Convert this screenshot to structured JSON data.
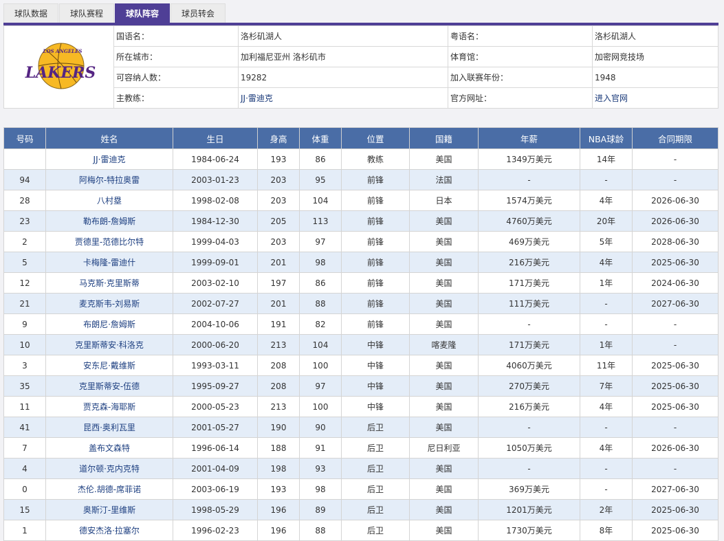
{
  "tabs": [
    "球队数据",
    "球队赛程",
    "球队阵容",
    "球员转会"
  ],
  "active_tab": 2,
  "colors": {
    "accent": "#4f3f96",
    "header": "#4a6da6",
    "alt_row": "#e4edf8"
  },
  "team": {
    "logo_text": "LOS ANGELES LAKERS",
    "rows": [
      [
        "国语名：",
        "洛杉矶湖人",
        "粤语名：",
        "洛杉矶湖人"
      ],
      [
        "所在城市：",
        "加利福尼亚州 洛杉矶市",
        "体育馆：",
        "加密网竞技场"
      ],
      [
        "可容纳人数：",
        "19282",
        "加入联赛年份：",
        "1948"
      ],
      [
        "主教练：",
        "JJ·雷迪克",
        "官方网址：",
        "进入官网"
      ]
    ]
  },
  "roster": {
    "headers": [
      "号码",
      "姓名",
      "生日",
      "身高",
      "体重",
      "位置",
      "国籍",
      "年薪",
      "NBA球龄",
      "合同期限"
    ],
    "rows": [
      [
        "",
        "JJ·雷迪克",
        "1984-06-24",
        "193",
        "86",
        "教练",
        "美国",
        "1349万美元",
        "14年",
        "-"
      ],
      [
        "94",
        "阿梅尔-特拉奥雷",
        "2003-01-23",
        "203",
        "95",
        "前锋",
        "法国",
        "-",
        "-",
        "-"
      ],
      [
        "28",
        "八村塁",
        "1998-02-08",
        "203",
        "104",
        "前锋",
        "日本",
        "1574万美元",
        "4年",
        "2026-06-30"
      ],
      [
        "23",
        "勒布朗-詹姆斯",
        "1984-12-30",
        "205",
        "113",
        "前锋",
        "美国",
        "4760万美元",
        "20年",
        "2026-06-30"
      ],
      [
        "2",
        "贾德里-范德比尔特",
        "1999-04-03",
        "203",
        "97",
        "前锋",
        "美国",
        "469万美元",
        "5年",
        "2028-06-30"
      ],
      [
        "5",
        "卡梅隆-雷迪什",
        "1999-09-01",
        "201",
        "98",
        "前锋",
        "美国",
        "216万美元",
        "4年",
        "2025-06-30"
      ],
      [
        "12",
        "马克斯·克里斯蒂",
        "2003-02-10",
        "197",
        "86",
        "前锋",
        "美国",
        "171万美元",
        "1年",
        "2024-06-30"
      ],
      [
        "21",
        "麦克斯韦-刘易斯",
        "2002-07-27",
        "201",
        "88",
        "前锋",
        "美国",
        "111万美元",
        "-",
        "2027-06-30"
      ],
      [
        "9",
        "布朗尼·詹姆斯",
        "2004-10-06",
        "191",
        "82",
        "前锋",
        "美国",
        "-",
        "-",
        "-"
      ],
      [
        "10",
        "克里斯蒂安·科洛克",
        "2000-06-20",
        "213",
        "104",
        "中锋",
        "喀麦隆",
        "171万美元",
        "1年",
        "-"
      ],
      [
        "3",
        "安东尼·戴维斯",
        "1993-03-11",
        "208",
        "100",
        "中锋",
        "美国",
        "4060万美元",
        "11年",
        "2025-06-30"
      ],
      [
        "35",
        "克里斯蒂安-伍德",
        "1995-09-27",
        "208",
        "97",
        "中锋",
        "美国",
        "270万美元",
        "7年",
        "2025-06-30"
      ],
      [
        "11",
        "贾克森-海耶斯",
        "2000-05-23",
        "213",
        "100",
        "中锋",
        "美国",
        "216万美元",
        "4年",
        "2025-06-30"
      ],
      [
        "41",
        "昆西·奥利瓦里",
        "2001-05-27",
        "190",
        "90",
        "后卫",
        "美国",
        "-",
        "-",
        "-"
      ],
      [
        "7",
        "盖布文森特",
        "1996-06-14",
        "188",
        "91",
        "后卫",
        "尼日利亚",
        "1050万美元",
        "4年",
        "2026-06-30"
      ],
      [
        "4",
        "道尔顿·克内克特",
        "2001-04-09",
        "198",
        "93",
        "后卫",
        "美国",
        "-",
        "-",
        "-"
      ],
      [
        "0",
        "杰伦.胡德-席菲诺",
        "2003-06-19",
        "193",
        "98",
        "后卫",
        "美国",
        "369万美元",
        "-",
        "2027-06-30"
      ],
      [
        "15",
        "奥斯汀-里维斯",
        "1998-05-29",
        "196",
        "89",
        "后卫",
        "美国",
        "1201万美元",
        "2年",
        "2025-06-30"
      ],
      [
        "1",
        "德安杰洛·拉塞尔",
        "1996-02-23",
        "196",
        "88",
        "后卫",
        "美国",
        "1730万美元",
        "8年",
        "2025-06-30"
      ]
    ]
  }
}
